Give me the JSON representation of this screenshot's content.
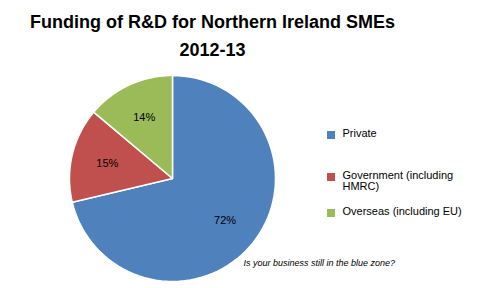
{
  "chart_data": {
    "type": "pie",
    "title": "Funding of R&D for Northern Ireland SMEs 2012-13",
    "categories": [
      "Private",
      "Government (including HMRC)",
      "Overseas (including EU)"
    ],
    "values": [
      72,
      15,
      14
    ],
    "value_labels": [
      "72%",
      "15%",
      "14%"
    ],
    "colors": [
      "#4f81bd",
      "#c0504d",
      "#9bbb59"
    ],
    "data_labels": true,
    "legend": "right",
    "annotations": [
      "Is your business still in the blue zone?"
    ]
  }
}
